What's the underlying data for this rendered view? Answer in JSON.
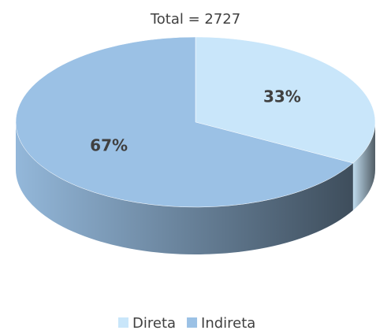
{
  "chart_data": {
    "type": "pie",
    "title": "Total = 2727",
    "categories": [
      "Direta",
      "Indireta"
    ],
    "values": [
      33,
      67
    ],
    "value_labels": [
      "33%",
      "67%"
    ],
    "colors": [
      "#c9e6fa",
      "#9bc1e5"
    ],
    "legend": "bottom"
  }
}
